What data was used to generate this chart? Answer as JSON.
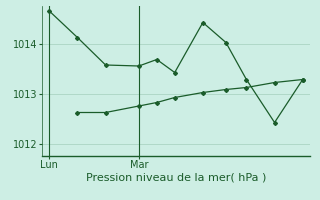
{
  "title": "Pression niveau de la mer( hPa )",
  "background_color": "#cdeee4",
  "grid_color": "#b0d8c8",
  "line_color": "#1a5c2a",
  "ylim": [
    1011.75,
    1014.75
  ],
  "yticks": [
    1012,
    1013,
    1014
  ],
  "xlim": [
    0,
    10.5
  ],
  "x_lun_label": "Lun",
  "x_mar_label": "Mar",
  "lun_x": 0.3,
  "mar_x": 3.8,
  "series1_x": [
    0.3,
    1.4,
    2.5,
    3.8,
    4.5,
    5.2,
    6.3,
    7.2,
    8.0,
    9.1,
    10.2
  ],
  "series1_y": [
    1014.65,
    1014.12,
    1013.57,
    1013.55,
    1013.68,
    1013.42,
    1014.42,
    1014.02,
    1013.28,
    1012.42,
    1013.28
  ],
  "series2_x": [
    1.4,
    2.5,
    3.8,
    4.5,
    5.2,
    6.3,
    7.2,
    8.0,
    9.1,
    10.2
  ],
  "series2_y": [
    1012.62,
    1012.62,
    1012.75,
    1012.82,
    1012.92,
    1013.02,
    1013.08,
    1013.12,
    1013.22,
    1013.28
  ],
  "xlabel_fontsize": 8,
  "tick_fontsize": 7,
  "ylabel_fontsize": 7
}
